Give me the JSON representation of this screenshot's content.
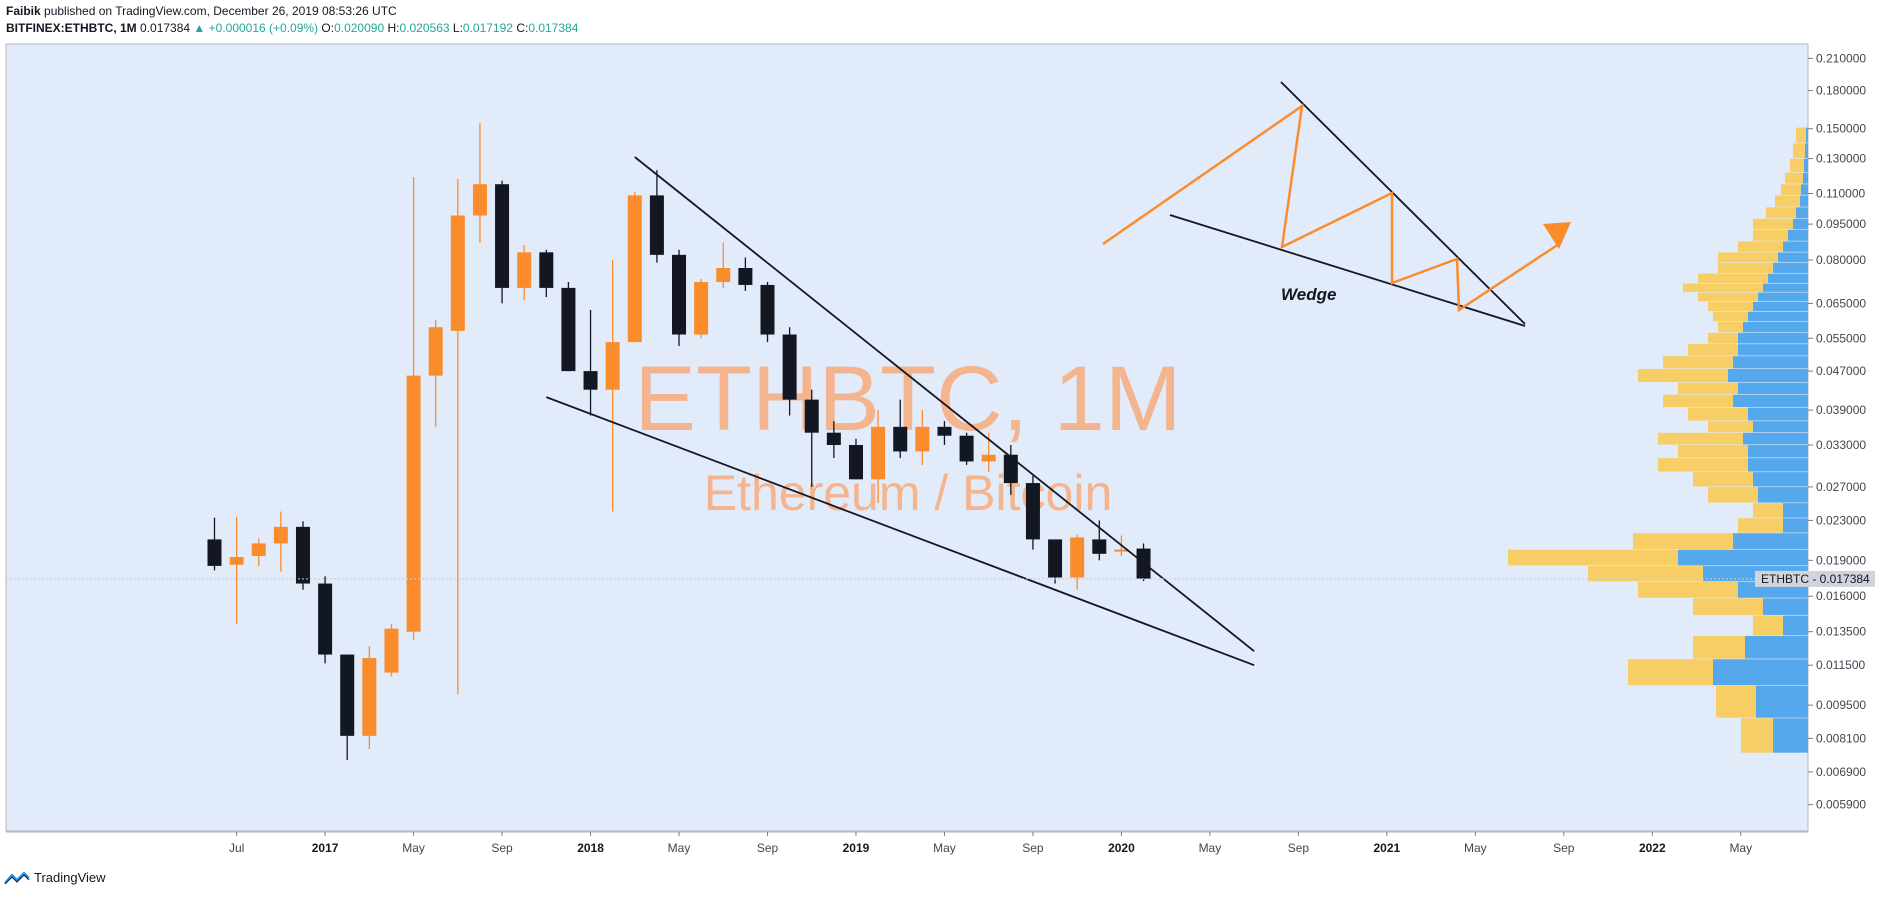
{
  "header": {
    "author": "Faibik",
    "published": "published on TradingView.com, December 26, 2019 08:53:26 UTC",
    "symbol": "BITFINEX:ETHBTC, 1M",
    "last": "0.017384",
    "change": "▲ +0.000016 (+0.09%)",
    "o_label": "O:",
    "o_value": "0.020090",
    "h_label": "H:",
    "h_value": "0.020563",
    "l_label": "L:",
    "l_value": "0.017192",
    "c_label": "C:",
    "c_value": "0.017384"
  },
  "watermark": {
    "main": "ETHBTC, 1M",
    "sub": "Ethereum / Bitcoin"
  },
  "annotation": {
    "wedge_label": "Wedge"
  },
  "price_tag": {
    "label": "ETHBTC",
    "value": "0.017384"
  },
  "footer": {
    "brand": "TradingView",
    "logo_icon": "tradingview-logo-icon"
  },
  "colors": {
    "background": "#e2ebfa",
    "up_candle": "#fb8c2b",
    "down_candle": "#131722",
    "volume_up": "#f7cd66",
    "volume_down": "#56a8ec",
    "watermark": "#f4b48e"
  },
  "chart_data": {
    "type": "candlestick",
    "y_scale": "log",
    "ylim": [
      0.0052,
      0.225
    ],
    "y_ticks": [
      "0.210000",
      "0.180000",
      "0.150000",
      "0.130000",
      "0.110000",
      "0.095000",
      "0.080000",
      "0.065000",
      "0.055000",
      "0.047000",
      "0.039000",
      "0.033000",
      "0.027000",
      "0.023000",
      "0.019000",
      "0.016000",
      "0.013500",
      "0.011500",
      "0.009500",
      "0.008100",
      "0.006900",
      "0.005900"
    ],
    "x_ticks": [
      {
        "label": "Jul",
        "bold": false
      },
      {
        "label": "2017",
        "bold": true
      },
      {
        "label": "May",
        "bold": false
      },
      {
        "label": "Sep",
        "bold": false
      },
      {
        "label": "2018",
        "bold": true
      },
      {
        "label": "May",
        "bold": false
      },
      {
        "label": "Sep",
        "bold": false
      },
      {
        "label": "2019",
        "bold": true
      },
      {
        "label": "May",
        "bold": false
      },
      {
        "label": "Sep",
        "bold": false
      },
      {
        "label": "2020",
        "bold": true
      },
      {
        "label": "May",
        "bold": false
      },
      {
        "label": "Sep",
        "bold": false
      },
      {
        "label": "2021",
        "bold": true
      },
      {
        "label": "May",
        "bold": false
      },
      {
        "label": "Sep",
        "bold": false
      },
      {
        "label": "2022",
        "bold": true
      },
      {
        "label": "May",
        "bold": false
      }
    ],
    "candles": [
      {
        "date": "2016-06",
        "o": 0.021,
        "h": 0.0233,
        "l": 0.0181,
        "c": 0.0185
      },
      {
        "date": "2016-07",
        "o": 0.0186,
        "h": 0.0234,
        "l": 0.014,
        "c": 0.0193
      },
      {
        "date": "2016-08",
        "o": 0.0194,
        "h": 0.0211,
        "l": 0.0185,
        "c": 0.0206
      },
      {
        "date": "2016-09",
        "o": 0.0206,
        "h": 0.024,
        "l": 0.018,
        "c": 0.0223
      },
      {
        "date": "2016-10",
        "o": 0.0223,
        "h": 0.0229,
        "l": 0.0165,
        "c": 0.017
      },
      {
        "date": "2016-11",
        "o": 0.017,
        "h": 0.0176,
        "l": 0.0116,
        "c": 0.0121
      },
      {
        "date": "2016-12",
        "o": 0.0121,
        "h": 0.0121,
        "l": 0.0073,
        "c": 0.0082
      },
      {
        "date": "2017-01",
        "o": 0.0082,
        "h": 0.0126,
        "l": 0.0077,
        "c": 0.0119
      },
      {
        "date": "2017-02",
        "o": 0.0111,
        "h": 0.014,
        "l": 0.0109,
        "c": 0.0137
      },
      {
        "date": "2017-03",
        "o": 0.0135,
        "h": 0.119,
        "l": 0.013,
        "c": 0.046
      },
      {
        "date": "2017-04",
        "o": 0.046,
        "h": 0.06,
        "l": 0.036,
        "c": 0.058
      },
      {
        "date": "2017-05",
        "o": 0.057,
        "h": 0.118,
        "l": 0.01,
        "c": 0.099
      },
      {
        "date": "2017-06",
        "o": 0.099,
        "h": 0.154,
        "l": 0.087,
        "c": 0.115
      },
      {
        "date": "2017-07",
        "o": 0.115,
        "h": 0.117,
        "l": 0.065,
        "c": 0.07
      },
      {
        "date": "2017-08",
        "o": 0.07,
        "h": 0.086,
        "l": 0.066,
        "c": 0.083
      },
      {
        "date": "2017-09",
        "o": 0.083,
        "h": 0.084,
        "l": 0.067,
        "c": 0.07
      },
      {
        "date": "2017-10",
        "o": 0.07,
        "h": 0.072,
        "l": 0.047,
        "c": 0.047
      },
      {
        "date": "2017-11",
        "o": 0.047,
        "h": 0.063,
        "l": 0.038,
        "c": 0.043
      },
      {
        "date": "2017-12",
        "o": 0.043,
        "h": 0.08,
        "l": 0.024,
        "c": 0.054
      },
      {
        "date": "2018-01",
        "o": 0.054,
        "h": 0.111,
        "l": 0.054,
        "c": 0.109
      },
      {
        "date": "2018-02",
        "o": 0.109,
        "h": 0.123,
        "l": 0.079,
        "c": 0.082
      },
      {
        "date": "2018-03",
        "o": 0.082,
        "h": 0.084,
        "l": 0.053,
        "c": 0.056
      },
      {
        "date": "2018-04",
        "o": 0.056,
        "h": 0.073,
        "l": 0.055,
        "c": 0.072
      },
      {
        "date": "2018-05",
        "o": 0.072,
        "h": 0.087,
        "l": 0.07,
        "c": 0.077
      },
      {
        "date": "2018-06",
        "o": 0.077,
        "h": 0.081,
        "l": 0.069,
        "c": 0.071
      },
      {
        "date": "2018-07",
        "o": 0.071,
        "h": 0.072,
        "l": 0.054,
        "c": 0.056
      },
      {
        "date": "2018-08",
        "o": 0.056,
        "h": 0.058,
        "l": 0.038,
        "c": 0.041
      },
      {
        "date": "2018-09",
        "o": 0.041,
        "h": 0.043,
        "l": 0.027,
        "c": 0.035
      },
      {
        "date": "2018-10",
        "o": 0.035,
        "h": 0.037,
        "l": 0.031,
        "c": 0.033
      },
      {
        "date": "2018-11",
        "o": 0.033,
        "h": 0.034,
        "l": 0.028,
        "c": 0.028
      },
      {
        "date": "2018-12",
        "o": 0.028,
        "h": 0.039,
        "l": 0.025,
        "c": 0.036
      },
      {
        "date": "2019-01",
        "o": 0.036,
        "h": 0.041,
        "l": 0.031,
        "c": 0.032
      },
      {
        "date": "2019-02",
        "o": 0.032,
        "h": 0.039,
        "l": 0.03,
        "c": 0.036
      },
      {
        "date": "2019-03",
        "o": 0.036,
        "h": 0.037,
        "l": 0.033,
        "c": 0.0345
      },
      {
        "date": "2019-04",
        "o": 0.0345,
        "h": 0.035,
        "l": 0.03,
        "c": 0.0305
      },
      {
        "date": "2019-05",
        "o": 0.0305,
        "h": 0.035,
        "l": 0.029,
        "c": 0.0315
      },
      {
        "date": "2019-06",
        "o": 0.0315,
        "h": 0.033,
        "l": 0.026,
        "c": 0.0275
      },
      {
        "date": "2019-07",
        "o": 0.0275,
        "h": 0.0285,
        "l": 0.02,
        "c": 0.021
      },
      {
        "date": "2019-08",
        "o": 0.021,
        "h": 0.021,
        "l": 0.017,
        "c": 0.0175
      },
      {
        "date": "2019-09",
        "o": 0.0175,
        "h": 0.0215,
        "l": 0.0165,
        "c": 0.0212
      },
      {
        "date": "2019-10",
        "o": 0.021,
        "h": 0.023,
        "l": 0.019,
        "c": 0.0196
      },
      {
        "date": "2019-11",
        "o": 0.0199,
        "h": 0.0214,
        "l": 0.0194,
        "c": 0.02
      },
      {
        "date": "2019-12",
        "o": 0.0201,
        "h": 0.0206,
        "l": 0.0172,
        "c": 0.0174
      }
    ],
    "volume_profile": [
      {
        "price": 0.145,
        "up": 10,
        "down": 2
      },
      {
        "price": 0.135,
        "up": 12,
        "down": 3
      },
      {
        "price": 0.125,
        "up": 14,
        "down": 4
      },
      {
        "price": 0.118,
        "up": 18,
        "down": 5
      },
      {
        "price": 0.112,
        "up": 20,
        "down": 7
      },
      {
        "price": 0.106,
        "up": 25,
        "down": 8
      },
      {
        "price": 0.1,
        "up": 30,
        "down": 12
      },
      {
        "price": 0.095,
        "up": 40,
        "down": 15
      },
      {
        "price": 0.09,
        "up": 35,
        "down": 20
      },
      {
        "price": 0.085,
        "up": 45,
        "down": 25
      },
      {
        "price": 0.081,
        "up": 60,
        "down": 30
      },
      {
        "price": 0.077,
        "up": 55,
        "down": 35
      },
      {
        "price": 0.073,
        "up": 70,
        "down": 40
      },
      {
        "price": 0.07,
        "up": 80,
        "down": 45
      },
      {
        "price": 0.067,
        "up": 60,
        "down": 50
      },
      {
        "price": 0.064,
        "up": 45,
        "down": 55
      },
      {
        "price": 0.061,
        "up": 35,
        "down": 60
      },
      {
        "price": 0.058,
        "up": 25,
        "down": 65
      },
      {
        "price": 0.055,
        "up": 30,
        "down": 70
      },
      {
        "price": 0.052,
        "up": 50,
        "down": 70
      },
      {
        "price": 0.049,
        "up": 70,
        "down": 75
      },
      {
        "price": 0.046,
        "up": 90,
        "down": 80
      },
      {
        "price": 0.043,
        "up": 60,
        "down": 70
      },
      {
        "price": 0.041,
        "up": 70,
        "down": 75
      },
      {
        "price": 0.038,
        "up": 60,
        "down": 60
      },
      {
        "price": 0.036,
        "up": 45,
        "down": 55
      },
      {
        "price": 0.034,
        "up": 85,
        "down": 65
      },
      {
        "price": 0.032,
        "up": 70,
        "down": 60
      },
      {
        "price": 0.03,
        "up": 90,
        "down": 60
      },
      {
        "price": 0.028,
        "up": 60,
        "down": 55
      },
      {
        "price": 0.026,
        "up": 50,
        "down": 50
      },
      {
        "price": 0.024,
        "up": 30,
        "down": 25
      },
      {
        "price": 0.0225,
        "up": 45,
        "down": 25
      },
      {
        "price": 0.0208,
        "up": 100,
        "down": 75
      },
      {
        "price": 0.0192,
        "up": 170,
        "down": 130
      },
      {
        "price": 0.0178,
        "up": 115,
        "down": 105
      },
      {
        "price": 0.0165,
        "up": 100,
        "down": 70
      },
      {
        "price": 0.0152,
        "up": 70,
        "down": 45
      },
      {
        "price": 0.014,
        "up": 30,
        "down": 25
      },
      {
        "price": 0.0125,
        "up": 52,
        "down": 63
      },
      {
        "price": 0.0112,
        "up": 85,
        "down": 95
      },
      {
        "price": 0.0097,
        "up": 40,
        "down": 52
      },
      {
        "price": 0.0082,
        "up": 32,
        "down": 35
      }
    ],
    "trendlines": [
      {
        "name": "upper-resistance",
        "from": {
          "date": "2018-01",
          "price": 0.131
        },
        "to": {
          "date": "2020-05",
          "price": 0.0123
        }
      },
      {
        "name": "lower-support",
        "from": {
          "date": "2017-09",
          "price": 0.0415
        },
        "to": {
          "date": "2020-05",
          "price": 0.0115
        }
      }
    ],
    "last_price": 0.017384
  }
}
